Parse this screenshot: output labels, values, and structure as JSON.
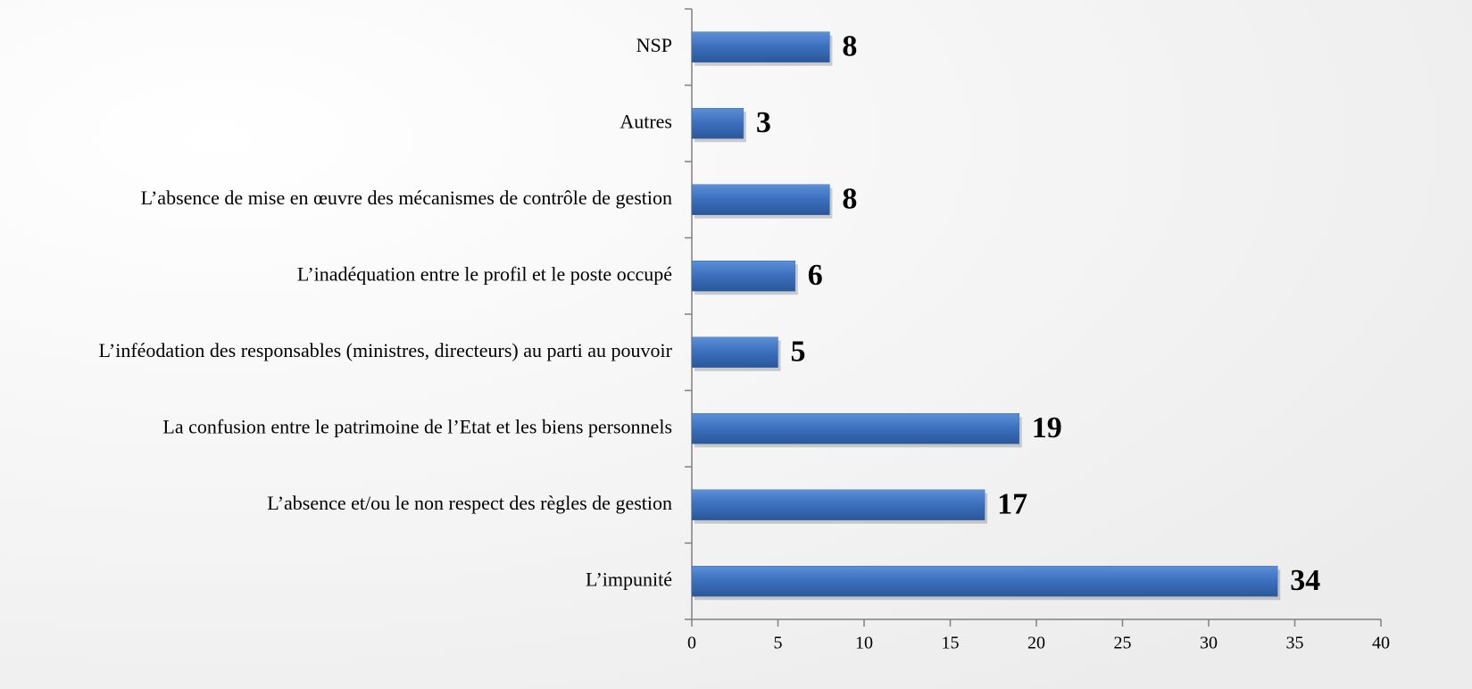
{
  "chart_data": {
    "type": "bar",
    "orientation": "horizontal",
    "categories": [
      "L’impunité",
      "L’absence et/ou le non respect des règles de gestion",
      "La confusion entre le patrimoine de l’Etat et les biens personnels",
      "L’inféodation des responsables (ministres, directeurs) au parti au pouvoir",
      "L’inadéquation entre le profil et le poste occupé",
      "L’absence de mise en œuvre des mécanismes de contrôle de gestion",
      "Autres",
      "NSP"
    ],
    "values": [
      34,
      17,
      19,
      5,
      6,
      8,
      3,
      8
    ],
    "color": "#3b6fbd",
    "xlim": [
      0,
      40
    ],
    "xticks": [
      0,
      5,
      10,
      15,
      20,
      25,
      30,
      35,
      40
    ],
    "grid": false
  }
}
